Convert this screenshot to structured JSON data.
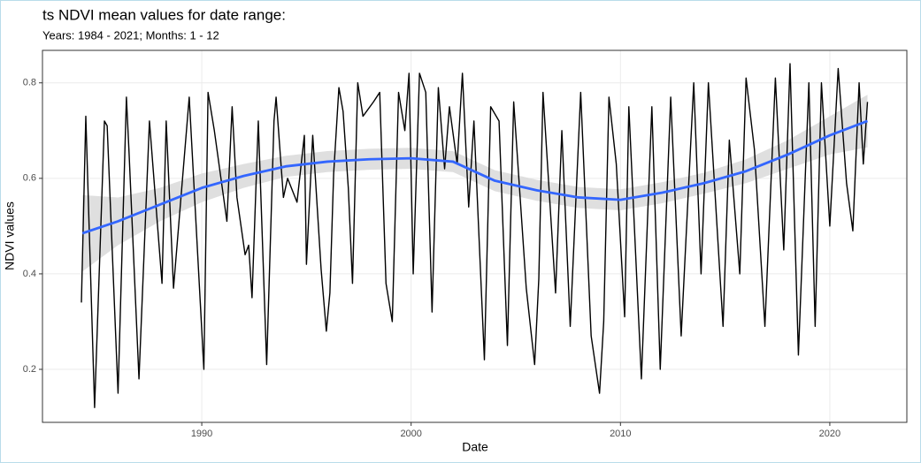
{
  "chart_data": {
    "type": "line",
    "title": "ts NDVI mean values for date range:",
    "subtitle": "Years: 1984 - 2021; Months: 1 - 12",
    "x_label": "Date",
    "y_label": "NDVI values",
    "x": [
      1984.25,
      1984.46,
      1984.88,
      1985.35,
      1985.48,
      1986.0,
      1986.4,
      1986.53,
      1987.0,
      1987.5,
      1988.1,
      1988.3,
      1988.65,
      1989.4,
      1990.1,
      1990.3,
      1990.6,
      1991.2,
      1991.45,
      1991.68,
      1992.07,
      1992.24,
      1992.4,
      1992.7,
      1993.1,
      1993.45,
      1993.55,
      1993.9,
      1994.1,
      1994.55,
      1994.9,
      1995.0,
      1995.3,
      1995.7,
      1995.95,
      1996.12,
      1996.3,
      1996.55,
      1996.75,
      1997.0,
      1997.2,
      1997.45,
      1997.7,
      1998.2,
      1998.5,
      1998.8,
      1999.1,
      1999.4,
      1999.7,
      1999.9,
      2000.1,
      2000.4,
      2000.7,
      2001.0,
      2001.3,
      2001.6,
      2001.83,
      2002.2,
      2002.45,
      2002.75,
      2003.0,
      2003.5,
      2003.8,
      2004.2,
      2004.6,
      2004.9,
      2005.5,
      2005.9,
      2006.1,
      2006.3,
      2006.9,
      2007.2,
      2007.6,
      2008.1,
      2008.6,
      2009.0,
      2009.2,
      2009.45,
      2009.8,
      2010.2,
      2010.4,
      2011.0,
      2011.5,
      2011.9,
      2012.4,
      2012.9,
      2013.5,
      2013.85,
      2014.2,
      2014.9,
      2015.2,
      2015.7,
      2016.0,
      2016.4,
      2016.9,
      2017.4,
      2017.8,
      2018.1,
      2018.5,
      2019.0,
      2019.3,
      2019.6,
      2020.0,
      2020.4,
      2020.8,
      2021.1,
      2021.4,
      2021.6,
      2021.8
    ],
    "values": [
      0.34,
      0.73,
      0.12,
      0.72,
      0.71,
      0.15,
      0.77,
      0.65,
      0.18,
      0.72,
      0.38,
      0.72,
      0.37,
      0.77,
      0.2,
      0.78,
      0.7,
      0.51,
      0.75,
      0.56,
      0.44,
      0.46,
      0.35,
      0.72,
      0.21,
      0.72,
      0.77,
      0.56,
      0.6,
      0.55,
      0.69,
      0.42,
      0.69,
      0.41,
      0.28,
      0.36,
      0.61,
      0.79,
      0.74,
      0.58,
      0.38,
      0.8,
      0.73,
      0.76,
      0.78,
      0.38,
      0.3,
      0.78,
      0.7,
      0.82,
      0.4,
      0.82,
      0.78,
      0.32,
      0.79,
      0.62,
      0.75,
      0.63,
      0.82,
      0.54,
      0.72,
      0.22,
      0.75,
      0.72,
      0.25,
      0.76,
      0.37,
      0.21,
      0.39,
      0.78,
      0.36,
      0.7,
      0.29,
      0.78,
      0.27,
      0.15,
      0.3,
      0.77,
      0.63,
      0.31,
      0.75,
      0.18,
      0.75,
      0.2,
      0.77,
      0.27,
      0.8,
      0.4,
      0.8,
      0.29,
      0.68,
      0.4,
      0.81,
      0.66,
      0.29,
      0.81,
      0.45,
      0.84,
      0.23,
      0.8,
      0.29,
      0.8,
      0.5,
      0.83,
      0.59,
      0.49,
      0.8,
      0.63,
      0.76
    ],
    "color": "#000000",
    "smooth": {
      "color": "#3366ff",
      "band_color": "#d9d9d9",
      "x": [
        1984.3,
        1986,
        1988,
        1990,
        1992,
        1994,
        1996,
        1998,
        2000,
        2002,
        2004,
        2006,
        2008,
        2010,
        2012,
        2014,
        2016,
        2018,
        2020,
        2021.8
      ],
      "values": [
        0.485,
        0.51,
        0.545,
        0.58,
        0.605,
        0.625,
        0.635,
        0.64,
        0.642,
        0.635,
        0.595,
        0.575,
        0.56,
        0.555,
        0.57,
        0.59,
        0.615,
        0.65,
        0.69,
        0.72
      ],
      "lower": [
        0.405,
        0.46,
        0.51,
        0.55,
        0.58,
        0.603,
        0.613,
        0.618,
        0.62,
        0.613,
        0.573,
        0.553,
        0.538,
        0.533,
        0.548,
        0.568,
        0.59,
        0.62,
        0.65,
        0.665
      ],
      "upper": [
        0.565,
        0.56,
        0.58,
        0.61,
        0.63,
        0.647,
        0.657,
        0.662,
        0.664,
        0.657,
        0.617,
        0.597,
        0.582,
        0.577,
        0.592,
        0.612,
        0.64,
        0.68,
        0.73,
        0.775
      ]
    },
    "xlim": [
      1982.39,
      2023.68
    ],
    "ylim": [
      0.089,
      0.868
    ],
    "xticks": [
      1990,
      2000,
      2010,
      2020
    ],
    "yticks": [
      0.2,
      0.4,
      0.6,
      0.8
    ],
    "grid": true
  }
}
